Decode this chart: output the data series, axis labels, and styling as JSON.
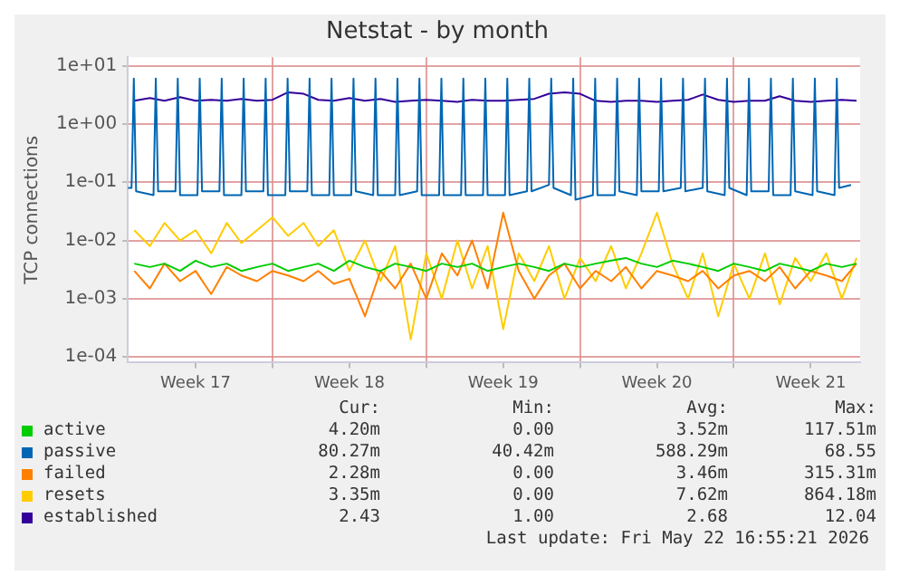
{
  "chart_data": {
    "type": "line",
    "title": "Netstat - by month",
    "ylabel": "TCP connections",
    "log": "y",
    "grid": true,
    "legend": "bottom",
    "marker": "none",
    "line_style": "solid",
    "xlim": [
      "2026-04-20T10:00",
      "2026-05-23T18:00"
    ],
    "xticks": [
      {
        "value": "2026-04-23T12:00",
        "label": "Week 17"
      },
      {
        "value": "2026-04-27T00:00",
        "label": null
      },
      {
        "value": "2026-04-30T12:00",
        "label": "Week 18"
      },
      {
        "value": "2026-05-04T00:00",
        "label": null
      },
      {
        "value": "2026-05-07T12:00",
        "label": "Week 19"
      },
      {
        "value": "2026-05-11T00:00",
        "label": null
      },
      {
        "value": "2026-05-14T12:00",
        "label": "Week 20"
      },
      {
        "value": "2026-05-18T00:00",
        "label": null
      },
      {
        "value": "2026-05-21T12:00",
        "label": "Week 21"
      }
    ],
    "ylim": [
      8e-05,
      14
    ],
    "yticks": [
      {
        "value": 0.0001,
        "label": "1e-04"
      },
      {
        "value": 0.001,
        "label": "1e-03"
      },
      {
        "value": 0.01,
        "label": "1e-02"
      },
      {
        "value": 0.1,
        "label": "1e-01"
      },
      {
        "value": 1,
        "label": "1e+00"
      },
      {
        "value": 10,
        "label": "1e+01"
      }
    ],
    "x": [
      "2026-04-20T17:00",
      "2026-04-21T10:00",
      "2026-04-22T02:00",
      "2026-04-22T19:00",
      "2026-04-23T12:00",
      "2026-04-24T05:00",
      "2026-04-24T22:00",
      "2026-04-25T14:00",
      "2026-04-26T07:00",
      "2026-04-27T00:00",
      "2026-04-27T17:00",
      "2026-04-28T10:00",
      "2026-04-29T02:00",
      "2026-04-29T19:00",
      "2026-04-30T12:00",
      "2026-05-01T05:00",
      "2026-05-01T22:00",
      "2026-05-02T14:00",
      "2026-05-03T07:00",
      "2026-05-04T00:00",
      "2026-05-04T17:00",
      "2026-05-05T10:00",
      "2026-05-06T02:00",
      "2026-05-06T19:00",
      "2026-05-07T12:00",
      "2026-05-08T05:00",
      "2026-05-08T22:00",
      "2026-05-09T14:00",
      "2026-05-10T07:00",
      "2026-05-11T00:00",
      "2026-05-11T17:00",
      "2026-05-12T10:00",
      "2026-05-13T02:00",
      "2026-05-13T19:00",
      "2026-05-14T12:00",
      "2026-05-15T05:00",
      "2026-05-15T22:00",
      "2026-05-16T14:00",
      "2026-05-17T07:00",
      "2026-05-18T00:00",
      "2026-05-18T17:00",
      "2026-05-19T10:00",
      "2026-05-20T02:00",
      "2026-05-20T19:00",
      "2026-05-21T12:00",
      "2026-05-22T05:00",
      "2026-05-22T22:00",
      "2026-05-23T14:00"
    ],
    "series": [
      {
        "name": "active",
        "color": "#00cc00",
        "values": [
          0.004,
          0.0035,
          0.004,
          0.003,
          0.0045,
          0.0035,
          0.004,
          0.003,
          0.0035,
          0.004,
          0.003,
          0.0035,
          0.004,
          0.003,
          0.0045,
          0.0035,
          0.003,
          0.004,
          0.0035,
          0.003,
          0.004,
          0.0035,
          0.004,
          0.003,
          0.0035,
          0.004,
          0.0035,
          0.003,
          0.004,
          0.0035,
          0.004,
          0.0045,
          0.005,
          0.004,
          0.0035,
          0.0045,
          0.004,
          0.0035,
          0.003,
          0.004,
          0.0035,
          0.003,
          0.004,
          0.0035,
          0.003,
          0.004,
          0.0035,
          0.004
        ]
      },
      {
        "name": "passive",
        "color": "#0066b3",
        "x": [
          "2026-04-20T10:00",
          "2026-04-20T14:00",
          "2026-04-20T16:30",
          "2026-04-20T19:00",
          "2026-04-21T14:00",
          "2026-04-21T16:30",
          "2026-04-21T19:00",
          "2026-04-22T14:00",
          "2026-04-22T16:30",
          "2026-04-22T19:00",
          "2026-04-23T14:00",
          "2026-04-23T16:30",
          "2026-04-23T19:00",
          "2026-04-24T14:00",
          "2026-04-24T16:30",
          "2026-04-24T19:00",
          "2026-04-25T14:00",
          "2026-04-25T16:30",
          "2026-04-25T19:00",
          "2026-04-26T14:00",
          "2026-04-26T16:30",
          "2026-04-26T19:00",
          "2026-04-27T14:00",
          "2026-04-27T16:30",
          "2026-04-27T19:00",
          "2026-04-28T14:00",
          "2026-04-28T16:30",
          "2026-04-28T19:00",
          "2026-04-29T14:00",
          "2026-04-29T16:30",
          "2026-04-29T19:00",
          "2026-04-30T14:00",
          "2026-04-30T16:30",
          "2026-04-30T19:00",
          "2026-05-01T14:00",
          "2026-05-01T16:30",
          "2026-05-01T19:00",
          "2026-05-02T14:00",
          "2026-05-02T16:30",
          "2026-05-02T19:00",
          "2026-05-03T14:00",
          "2026-05-03T16:30",
          "2026-05-03T19:00",
          "2026-05-04T14:00",
          "2026-05-04T16:30",
          "2026-05-04T19:00",
          "2026-05-05T14:00",
          "2026-05-05T16:30",
          "2026-05-05T19:00",
          "2026-05-06T14:00",
          "2026-05-06T16:30",
          "2026-05-06T19:00",
          "2026-05-07T14:00",
          "2026-05-07T16:30",
          "2026-05-07T19:00",
          "2026-05-08T14:00",
          "2026-05-08T16:30",
          "2026-05-08T19:00",
          "2026-05-09T14:00",
          "2026-05-09T16:30",
          "2026-05-09T19:00",
          "2026-05-10T14:00",
          "2026-05-10T16:30",
          "2026-05-10T19:00",
          "2026-05-11T14:00",
          "2026-05-11T16:30",
          "2026-05-11T19:00",
          "2026-05-12T14:00",
          "2026-05-12T16:30",
          "2026-05-12T19:00",
          "2026-05-13T14:00",
          "2026-05-13T16:30",
          "2026-05-13T19:00",
          "2026-05-14T14:00",
          "2026-05-14T16:30",
          "2026-05-14T19:00",
          "2026-05-15T14:00",
          "2026-05-15T16:30",
          "2026-05-15T19:00",
          "2026-05-16T14:00",
          "2026-05-16T16:30",
          "2026-05-16T19:00",
          "2026-05-17T14:00",
          "2026-05-17T16:30",
          "2026-05-17T19:00",
          "2026-05-18T14:00",
          "2026-05-18T16:30",
          "2026-05-18T19:00",
          "2026-05-19T14:00",
          "2026-05-19T16:30",
          "2026-05-19T19:00",
          "2026-05-20T14:00",
          "2026-05-20T16:30",
          "2026-05-20T19:00",
          "2026-05-21T14:00",
          "2026-05-21T16:30",
          "2026-05-21T19:00",
          "2026-05-22T14:00",
          "2026-05-22T16:30",
          "2026-05-22T19:00",
          "2026-05-23T08:00"
        ],
        "values": [
          0.08,
          0.08,
          6,
          0.07,
          0.06,
          6,
          0.07,
          0.07,
          6,
          0.06,
          0.06,
          6,
          0.07,
          0.07,
          6,
          0.06,
          0.06,
          6,
          0.07,
          0.07,
          6,
          0.06,
          0.06,
          6,
          0.07,
          0.07,
          6,
          0.06,
          0.06,
          6,
          0.06,
          0.06,
          6,
          0.07,
          0.06,
          6,
          0.06,
          0.06,
          6,
          0.06,
          0.07,
          6,
          0.06,
          0.06,
          6,
          0.06,
          0.06,
          6,
          0.06,
          0.06,
          6,
          0.06,
          0.06,
          6,
          0.06,
          0.07,
          6,
          0.07,
          0.09,
          6,
          0.08,
          0.06,
          6,
          0.05,
          0.06,
          6,
          0.06,
          0.06,
          6,
          0.07,
          0.06,
          6,
          0.07,
          0.07,
          6,
          0.07,
          0.08,
          6,
          0.07,
          0.08,
          6,
          0.07,
          0.06,
          6,
          0.08,
          0.06,
          6,
          0.07,
          0.07,
          6,
          0.06,
          0.06,
          6,
          0.07,
          0.06,
          6,
          0.07,
          0.06,
          6,
          0.08,
          0.09
        ]
      },
      {
        "name": "failed",
        "color": "#ff8000",
        "values": [
          0.003,
          0.0015,
          0.004,
          0.002,
          0.003,
          0.0012,
          0.0035,
          0.0025,
          0.002,
          0.003,
          0.0025,
          0.002,
          0.003,
          0.0018,
          0.0022,
          0.0005,
          0.003,
          0.0015,
          0.004,
          0.001,
          0.006,
          0.0025,
          0.01,
          0.0015,
          0.03,
          0.003,
          0.001,
          0.0025,
          0.004,
          0.0015,
          0.003,
          0.002,
          0.0035,
          0.0015,
          0.003,
          0.0025,
          0.002,
          0.003,
          0.0015,
          0.0025,
          0.003,
          0.002,
          0.0035,
          0.0015,
          0.003,
          0.0025,
          0.002,
          0.004
        ]
      },
      {
        "name": "resets",
        "color": "#ffcc00",
        "values": [
          0.015,
          0.008,
          0.02,
          0.01,
          0.015,
          0.006,
          0.02,
          0.009,
          0.015,
          0.025,
          0.012,
          0.02,
          0.008,
          0.015,
          0.003,
          0.01,
          0.002,
          0.008,
          0.0002,
          0.006,
          0.001,
          0.01,
          0.0015,
          0.008,
          0.0003,
          0.006,
          0.002,
          0.008,
          0.001,
          0.005,
          0.002,
          0.008,
          0.0015,
          0.006,
          0.03,
          0.004,
          0.001,
          0.006,
          0.0005,
          0.004,
          0.001,
          0.006,
          0.0008,
          0.005,
          0.002,
          0.006,
          0.001,
          0.005
        ]
      },
      {
        "name": "established",
        "color": "#330099",
        "values": [
          2.5,
          2.8,
          2.5,
          2.9,
          2.5,
          2.6,
          2.5,
          2.7,
          2.5,
          2.6,
          3.5,
          3.3,
          2.6,
          2.5,
          2.8,
          2.5,
          2.7,
          2.4,
          2.5,
          2.6,
          2.5,
          2.4,
          2.6,
          2.5,
          2.5,
          2.6,
          2.7,
          3.3,
          3.5,
          3.3,
          2.5,
          2.4,
          2.5,
          2.5,
          2.4,
          2.5,
          2.6,
          3.2,
          2.6,
          2.4,
          2.5,
          2.5,
          3.0,
          2.5,
          2.4,
          2.5,
          2.6,
          2.5
        ]
      }
    ],
    "annotations": [
      "Cur:",
      "Min:",
      "Avg:",
      "Max:",
      "4.20m",
      "0.00",
      "3.52m",
      "117.51m",
      "80.27m",
      "40.42m",
      "588.29m",
      "68.55",
      "2.28m",
      "0.00",
      "3.46m",
      "315.31m",
      "3.35m",
      "0.00",
      "7.62m",
      "864.18m",
      "2.43",
      "1.00",
      "2.68",
      "12.04",
      "Last update: Fri May 22 16:55:21 2026"
    ]
  }
}
